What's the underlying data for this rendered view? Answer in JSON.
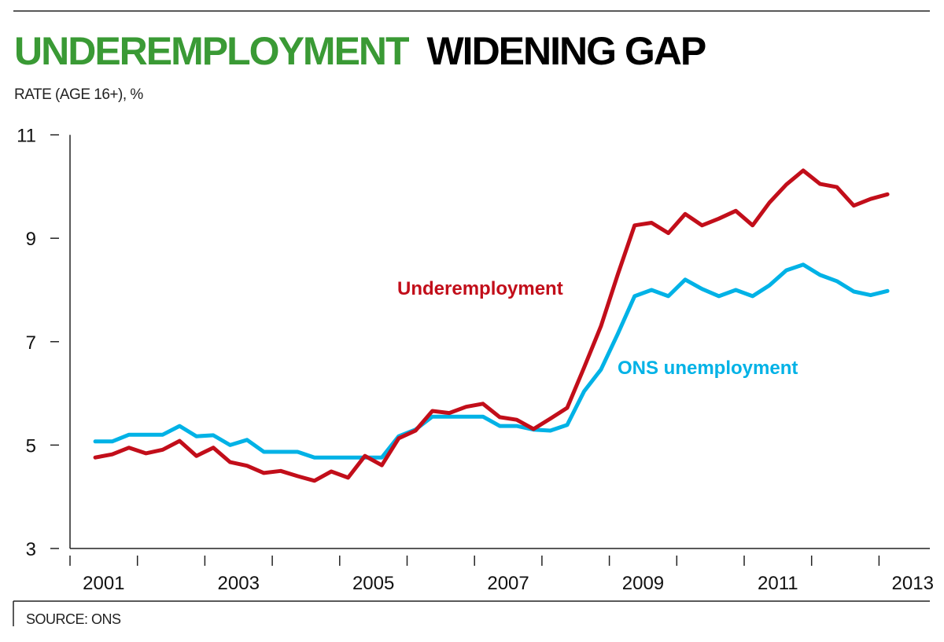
{
  "chart_data": {
    "type": "line",
    "title_part1": "UNDEREMPLOYMENT",
    "title_part2": "WIDENING GAP",
    "ylabel": "RATE (AGE 16+), %",
    "source": "SOURCE: ONS",
    "ylim": [
      3,
      11
    ],
    "yticks": [
      3,
      5,
      7,
      9,
      11
    ],
    "xlim": [
      2001,
      2013
    ],
    "xtick_labels": [
      "2001",
      "2003",
      "2005",
      "2007",
      "2009",
      "2011",
      "2013"
    ],
    "grid": false,
    "x_start": 2001.375,
    "x_step": 0.25,
    "series": [
      {
        "name": "Underemployment",
        "color": "#c20e1a",
        "values": [
          4.76,
          4.82,
          4.95,
          4.84,
          4.91,
          5.08,
          4.79,
          4.95,
          4.67,
          4.6,
          4.46,
          4.5,
          4.4,
          4.31,
          4.49,
          4.37,
          4.79,
          4.61,
          5.13,
          5.28,
          5.66,
          5.62,
          5.74,
          5.8,
          5.54,
          5.49,
          5.31,
          5.51,
          5.72,
          6.5,
          7.3,
          8.3,
          9.25,
          9.3,
          9.1,
          9.47,
          9.25,
          9.38,
          9.53,
          9.25,
          9.69,
          10.04,
          10.31,
          10.05,
          9.99,
          9.63,
          9.76,
          9.85
        ]
      },
      {
        "name": "ONS unemployment",
        "color": "#00b2e6",
        "values": [
          5.07,
          5.07,
          5.2,
          5.2,
          5.2,
          5.37,
          5.17,
          5.19,
          5.0,
          5.1,
          4.87,
          4.87,
          4.87,
          4.76,
          4.76,
          4.76,
          4.76,
          4.76,
          5.17,
          5.3,
          5.55,
          5.55,
          5.55,
          5.55,
          5.37,
          5.37,
          5.3,
          5.28,
          5.39,
          6.04,
          6.46,
          7.15,
          7.88,
          8.0,
          7.88,
          8.2,
          8.02,
          7.88,
          8.0,
          7.88,
          8.09,
          8.38,
          8.49,
          8.29,
          8.17,
          7.97,
          7.9,
          7.98
        ]
      }
    ],
    "title_color_part1": "#3a9a35"
  }
}
